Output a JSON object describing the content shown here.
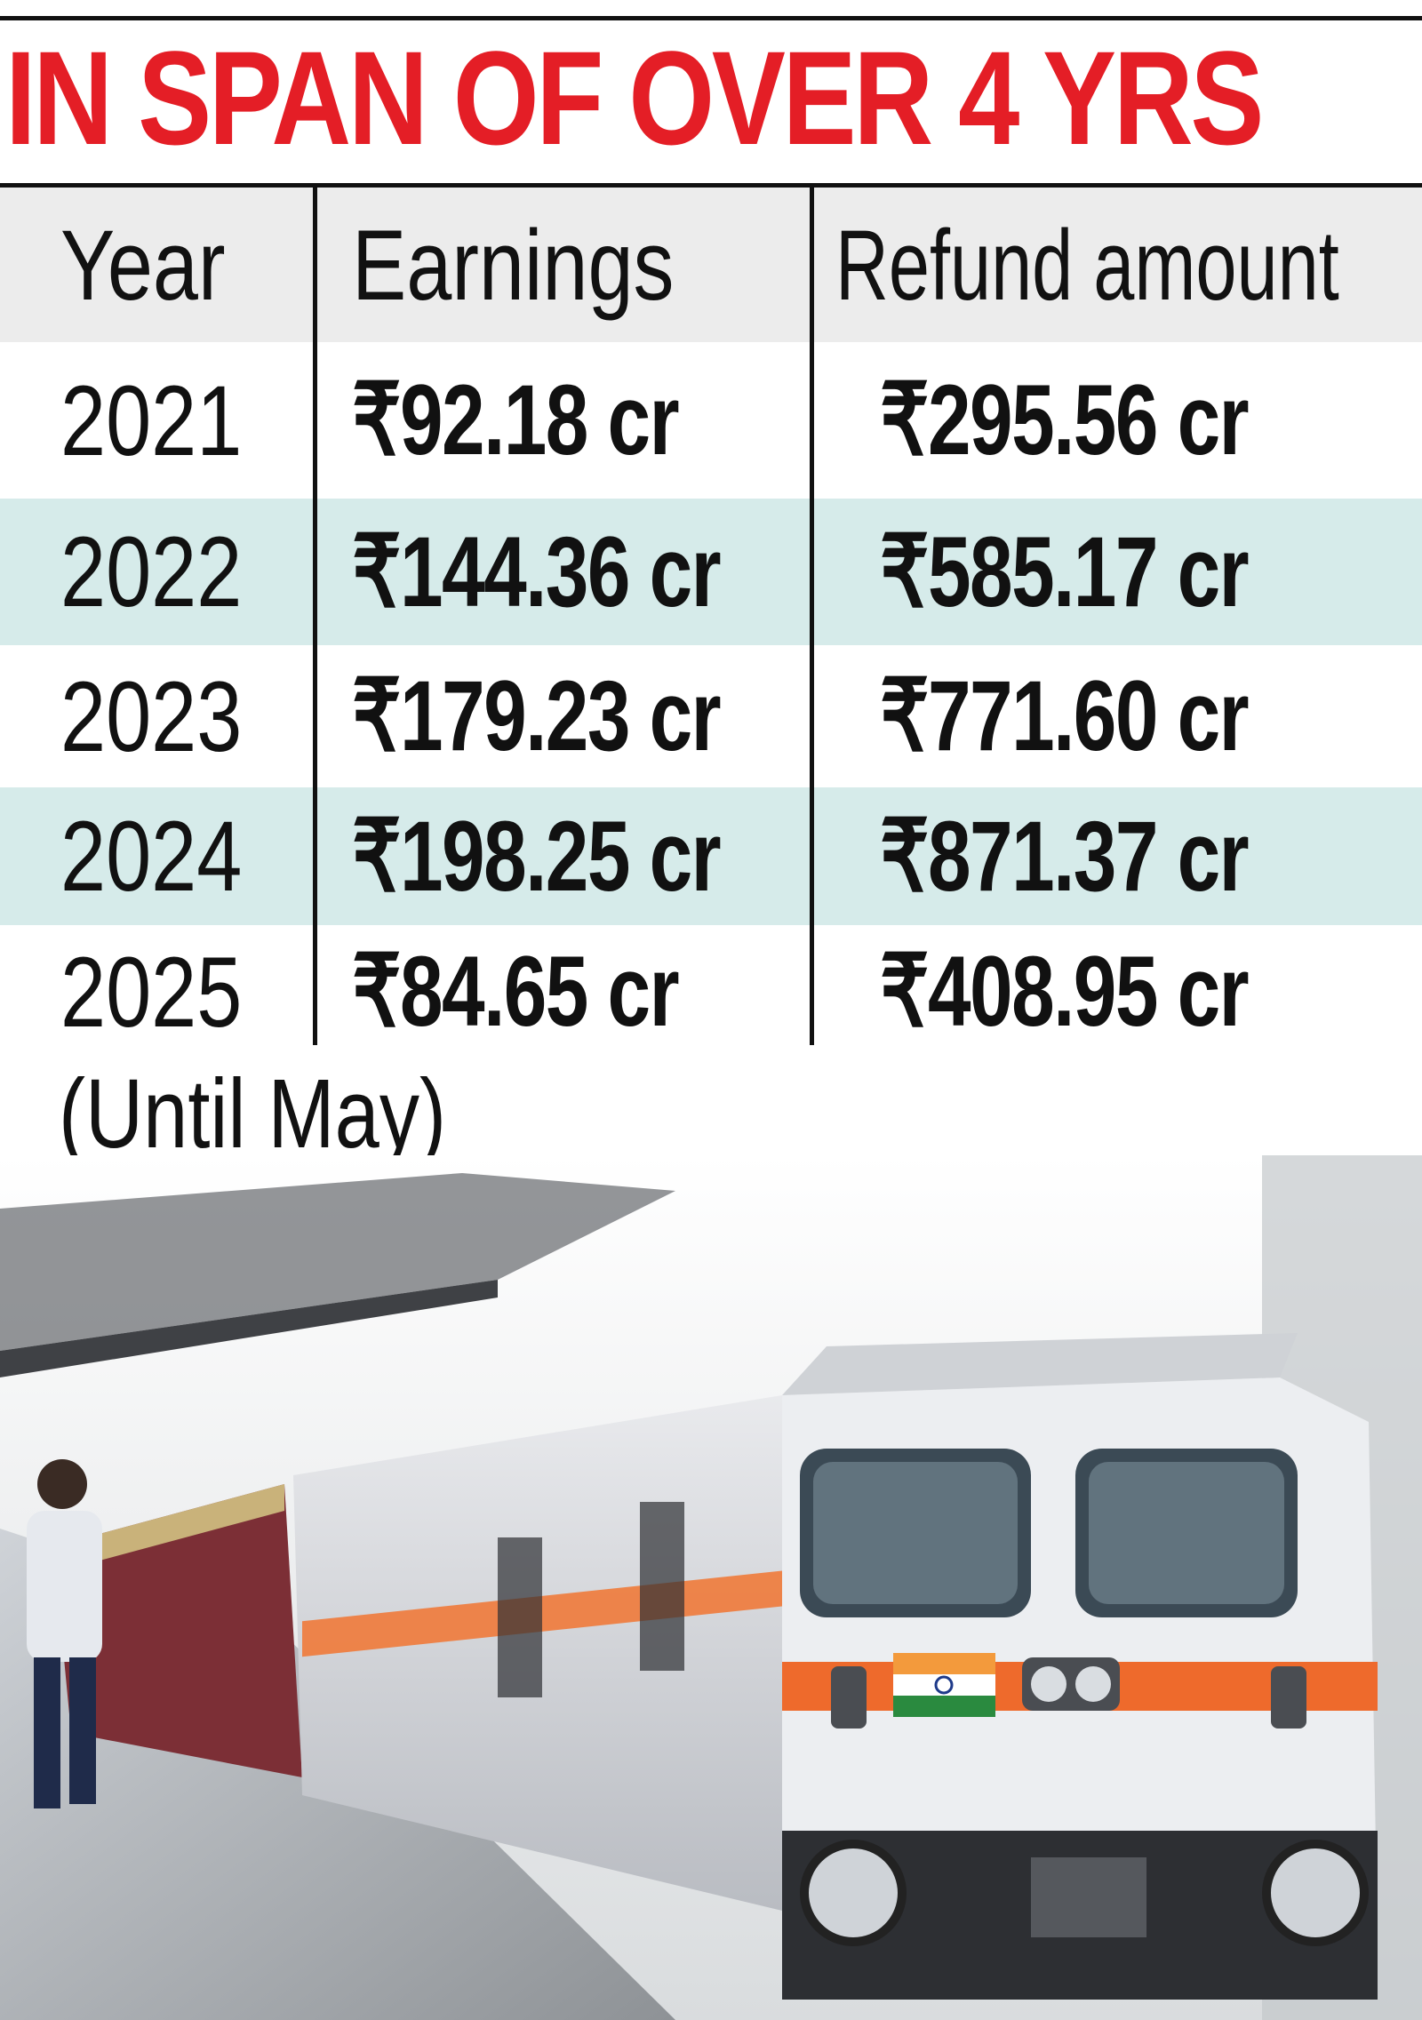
{
  "title": "IN SPAN OF OVER 4 YRS",
  "chart_data": {
    "type": "table",
    "columns": [
      "Year",
      "Earnings",
      "Refund amount"
    ],
    "rows": [
      {
        "year": "2021",
        "earnings": "₹92.18 cr",
        "refund": "₹295.56 cr"
      },
      {
        "year": "2022",
        "earnings": "₹144.36 cr",
        "refund": "₹585.17 cr"
      },
      {
        "year": "2023",
        "earnings": "₹179.23 cr",
        "refund": "₹771.60 cr"
      },
      {
        "year": "2024",
        "earnings": "₹198.25 cr",
        "refund": "₹871.37 cr"
      },
      {
        "year": "2025",
        "earnings": "₹84.65 cr",
        "refund": "₹408.95 cr"
      }
    ],
    "footnote": "(Until May)"
  },
  "colors": {
    "title": "#e41e26",
    "row_shade": "#d6ebea",
    "header_bg": "#ececec"
  },
  "photo": {
    "subject": "electric-locomotive-icon"
  }
}
